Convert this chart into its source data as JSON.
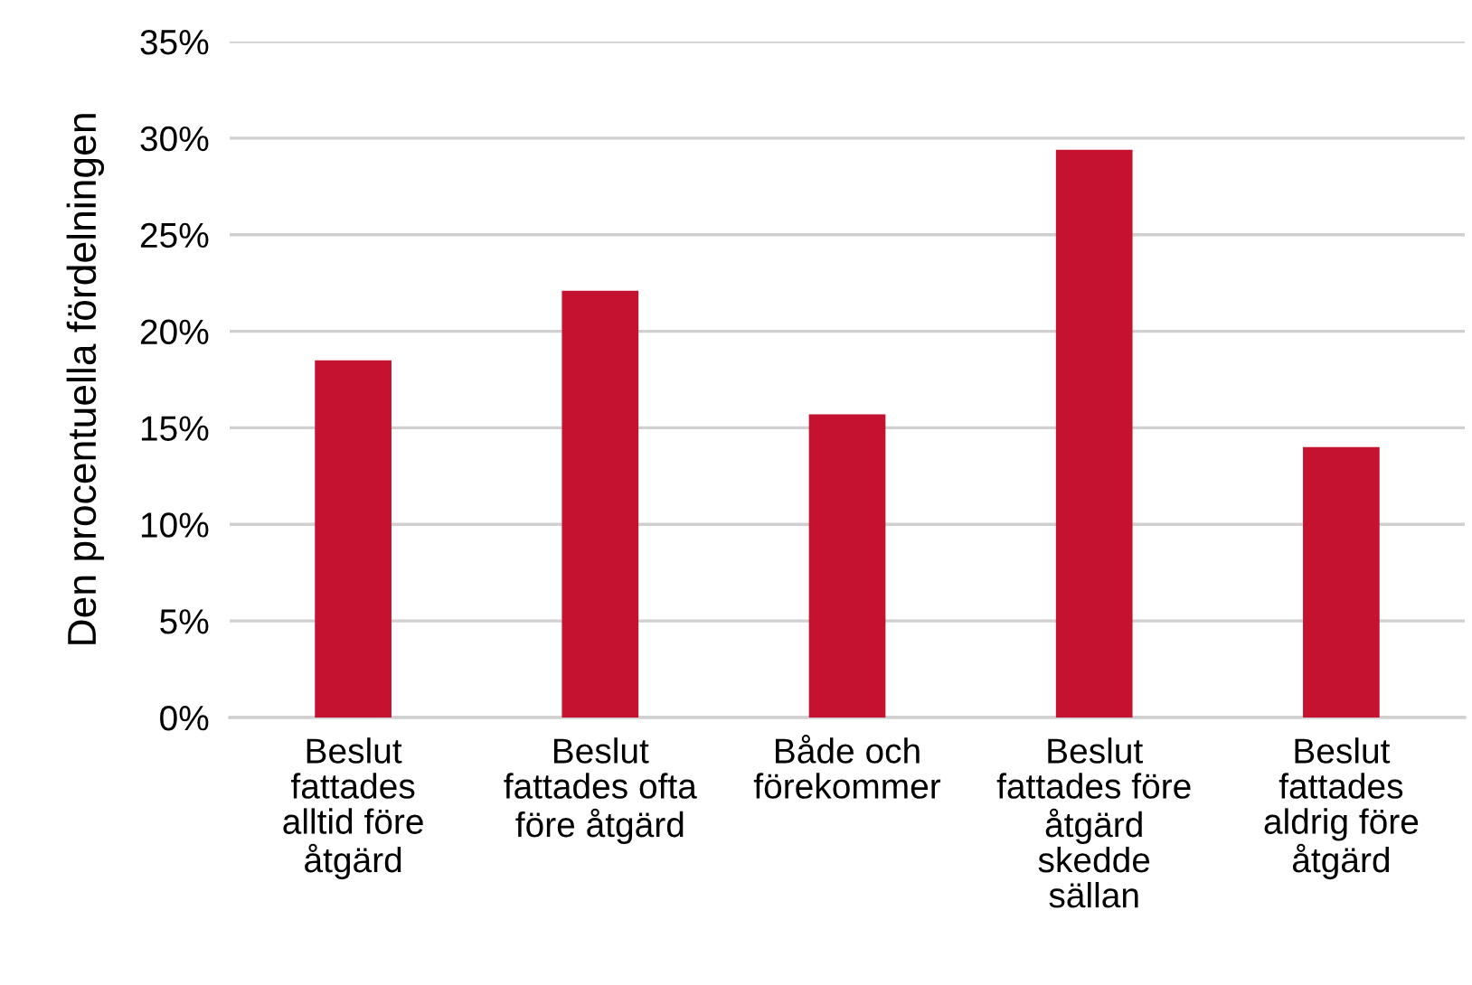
{
  "chart_data": {
    "type": "bar",
    "ylabel": "Den procentuella fördelningen",
    "categories": [
      "Beslut\nfattades\nalltid före\nåtgärd",
      "Beslut\nfattades ofta\nföre åtgärd",
      "Både och\nförekommer",
      "Beslut\nfattades före\nåtgärd\nskedde\nsällan",
      "Beslut\nfattades\naldrig före\nåtgärd"
    ],
    "values": [
      18.5,
      22.1,
      15.7,
      29.4,
      14.0
    ],
    "color": "#c41230",
    "ylim": [
      0,
      35
    ],
    "yticks": [
      {
        "value": 0,
        "label": "0%"
      },
      {
        "value": 5,
        "label": "5%"
      },
      {
        "value": 10,
        "label": "10%"
      },
      {
        "value": 15,
        "label": "15%"
      },
      {
        "value": 20,
        "label": "20%"
      },
      {
        "value": 25,
        "label": "25%"
      },
      {
        "value": 30,
        "label": "30%"
      },
      {
        "value": 35,
        "label": "35%"
      }
    ],
    "grid": "y"
  }
}
